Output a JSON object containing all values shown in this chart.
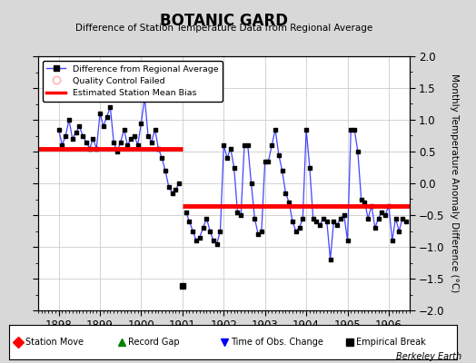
{
  "title": "BOTANIC GARD",
  "subtitle": "Difference of Station Temperature Data from Regional Average",
  "ylabel": "Monthly Temperature Anomaly Difference (°C)",
  "xlim": [
    1897.5,
    1906.5
  ],
  "ylim": [
    -2,
    2
  ],
  "xticks": [
    1898,
    1899,
    1900,
    1901,
    1902,
    1903,
    1904,
    1905,
    1906
  ],
  "yticks": [
    -2,
    -1.5,
    -1,
    -0.5,
    0,
    0.5,
    1,
    1.5,
    2
  ],
  "background_color": "#d8d8d8",
  "plot_bg_color": "#ffffff",
  "line_color": "#4444ff",
  "marker_color": "#000000",
  "bias1_y": 0.55,
  "bias1_x_start": 1897.5,
  "bias1_x_end": 1901.0,
  "bias2_y": -0.35,
  "bias2_x_start": 1901.0,
  "bias2_x_end": 1906.5,
  "empirical_break_x": 1901.0,
  "empirical_break_y": -1.62,
  "footer": "Berkeley Earth",
  "seg1_x": [
    1898.0,
    1898.0833,
    1898.1667,
    1898.25,
    1898.3333,
    1898.4167,
    1898.5,
    1898.5833,
    1898.6667,
    1898.75,
    1898.8333,
    1898.9167,
    1899.0,
    1899.0833,
    1899.1667,
    1899.25,
    1899.3333,
    1899.4167,
    1899.5,
    1899.5833,
    1899.6667,
    1899.75,
    1899.8333,
    1899.9167,
    1900.0,
    1900.0833,
    1900.1667,
    1900.25,
    1900.3333,
    1900.4167,
    1900.5,
    1900.5833,
    1900.6667,
    1900.75,
    1900.8333,
    1900.9167
  ],
  "seg1_y": [
    0.85,
    0.6,
    0.75,
    1.0,
    0.7,
    0.8,
    0.9,
    0.75,
    0.65,
    0.55,
    0.7,
    0.55,
    1.1,
    0.9,
    1.05,
    1.2,
    0.65,
    0.5,
    0.65,
    0.85,
    0.6,
    0.7,
    0.75,
    0.6,
    0.95,
    1.35,
    0.75,
    0.65,
    0.85,
    0.55,
    0.4,
    0.2,
    -0.05,
    -0.15,
    -0.1,
    0.0
  ],
  "seg2_x": [
    1901.0833,
    1901.1667,
    1901.25,
    1901.3333,
    1901.4167,
    1901.5,
    1901.5833,
    1901.6667,
    1901.75,
    1901.8333,
    1901.9167,
    1902.0,
    1902.0833,
    1902.1667,
    1902.25,
    1902.3333,
    1902.4167,
    1902.5,
    1902.5833,
    1902.6667,
    1902.75,
    1902.8333,
    1902.9167,
    1903.0,
    1903.0833,
    1903.1667,
    1903.25,
    1903.3333,
    1903.4167,
    1903.5,
    1903.5833,
    1903.6667,
    1903.75,
    1903.8333,
    1903.9167,
    1904.0,
    1904.0833,
    1904.1667,
    1904.25,
    1904.3333,
    1904.4167,
    1904.5,
    1904.5833,
    1904.6667,
    1904.75,
    1904.8333,
    1904.9167,
    1905.0,
    1905.0833,
    1905.1667,
    1905.25,
    1905.3333,
    1905.4167,
    1905.5,
    1905.5833,
    1905.6667,
    1905.75,
    1905.8333,
    1905.9167,
    1906.0,
    1906.0833,
    1906.1667,
    1906.25,
    1906.3333,
    1906.4167
  ],
  "seg2_y": [
    -0.45,
    -0.6,
    -0.75,
    -0.9,
    -0.85,
    -0.7,
    -0.55,
    -0.75,
    -0.9,
    -0.95,
    -0.75,
    0.6,
    0.4,
    0.55,
    0.25,
    -0.45,
    -0.5,
    0.6,
    0.6,
    0.0,
    -0.55,
    -0.8,
    -0.75,
    0.35,
    0.35,
    0.6,
    0.85,
    0.45,
    0.2,
    -0.15,
    -0.3,
    -0.6,
    -0.75,
    -0.7,
    -0.55,
    0.85,
    0.25,
    -0.55,
    -0.6,
    -0.65,
    -0.55,
    -0.6,
    -1.2,
    -0.6,
    -0.65,
    -0.55,
    -0.5,
    -0.9,
    0.85,
    0.85,
    0.5,
    -0.25,
    -0.3,
    -0.55,
    -0.35,
    -0.7,
    -0.55,
    -0.45,
    -0.5,
    -0.35,
    -0.9,
    -0.55,
    -0.75,
    -0.55,
    -0.6
  ]
}
